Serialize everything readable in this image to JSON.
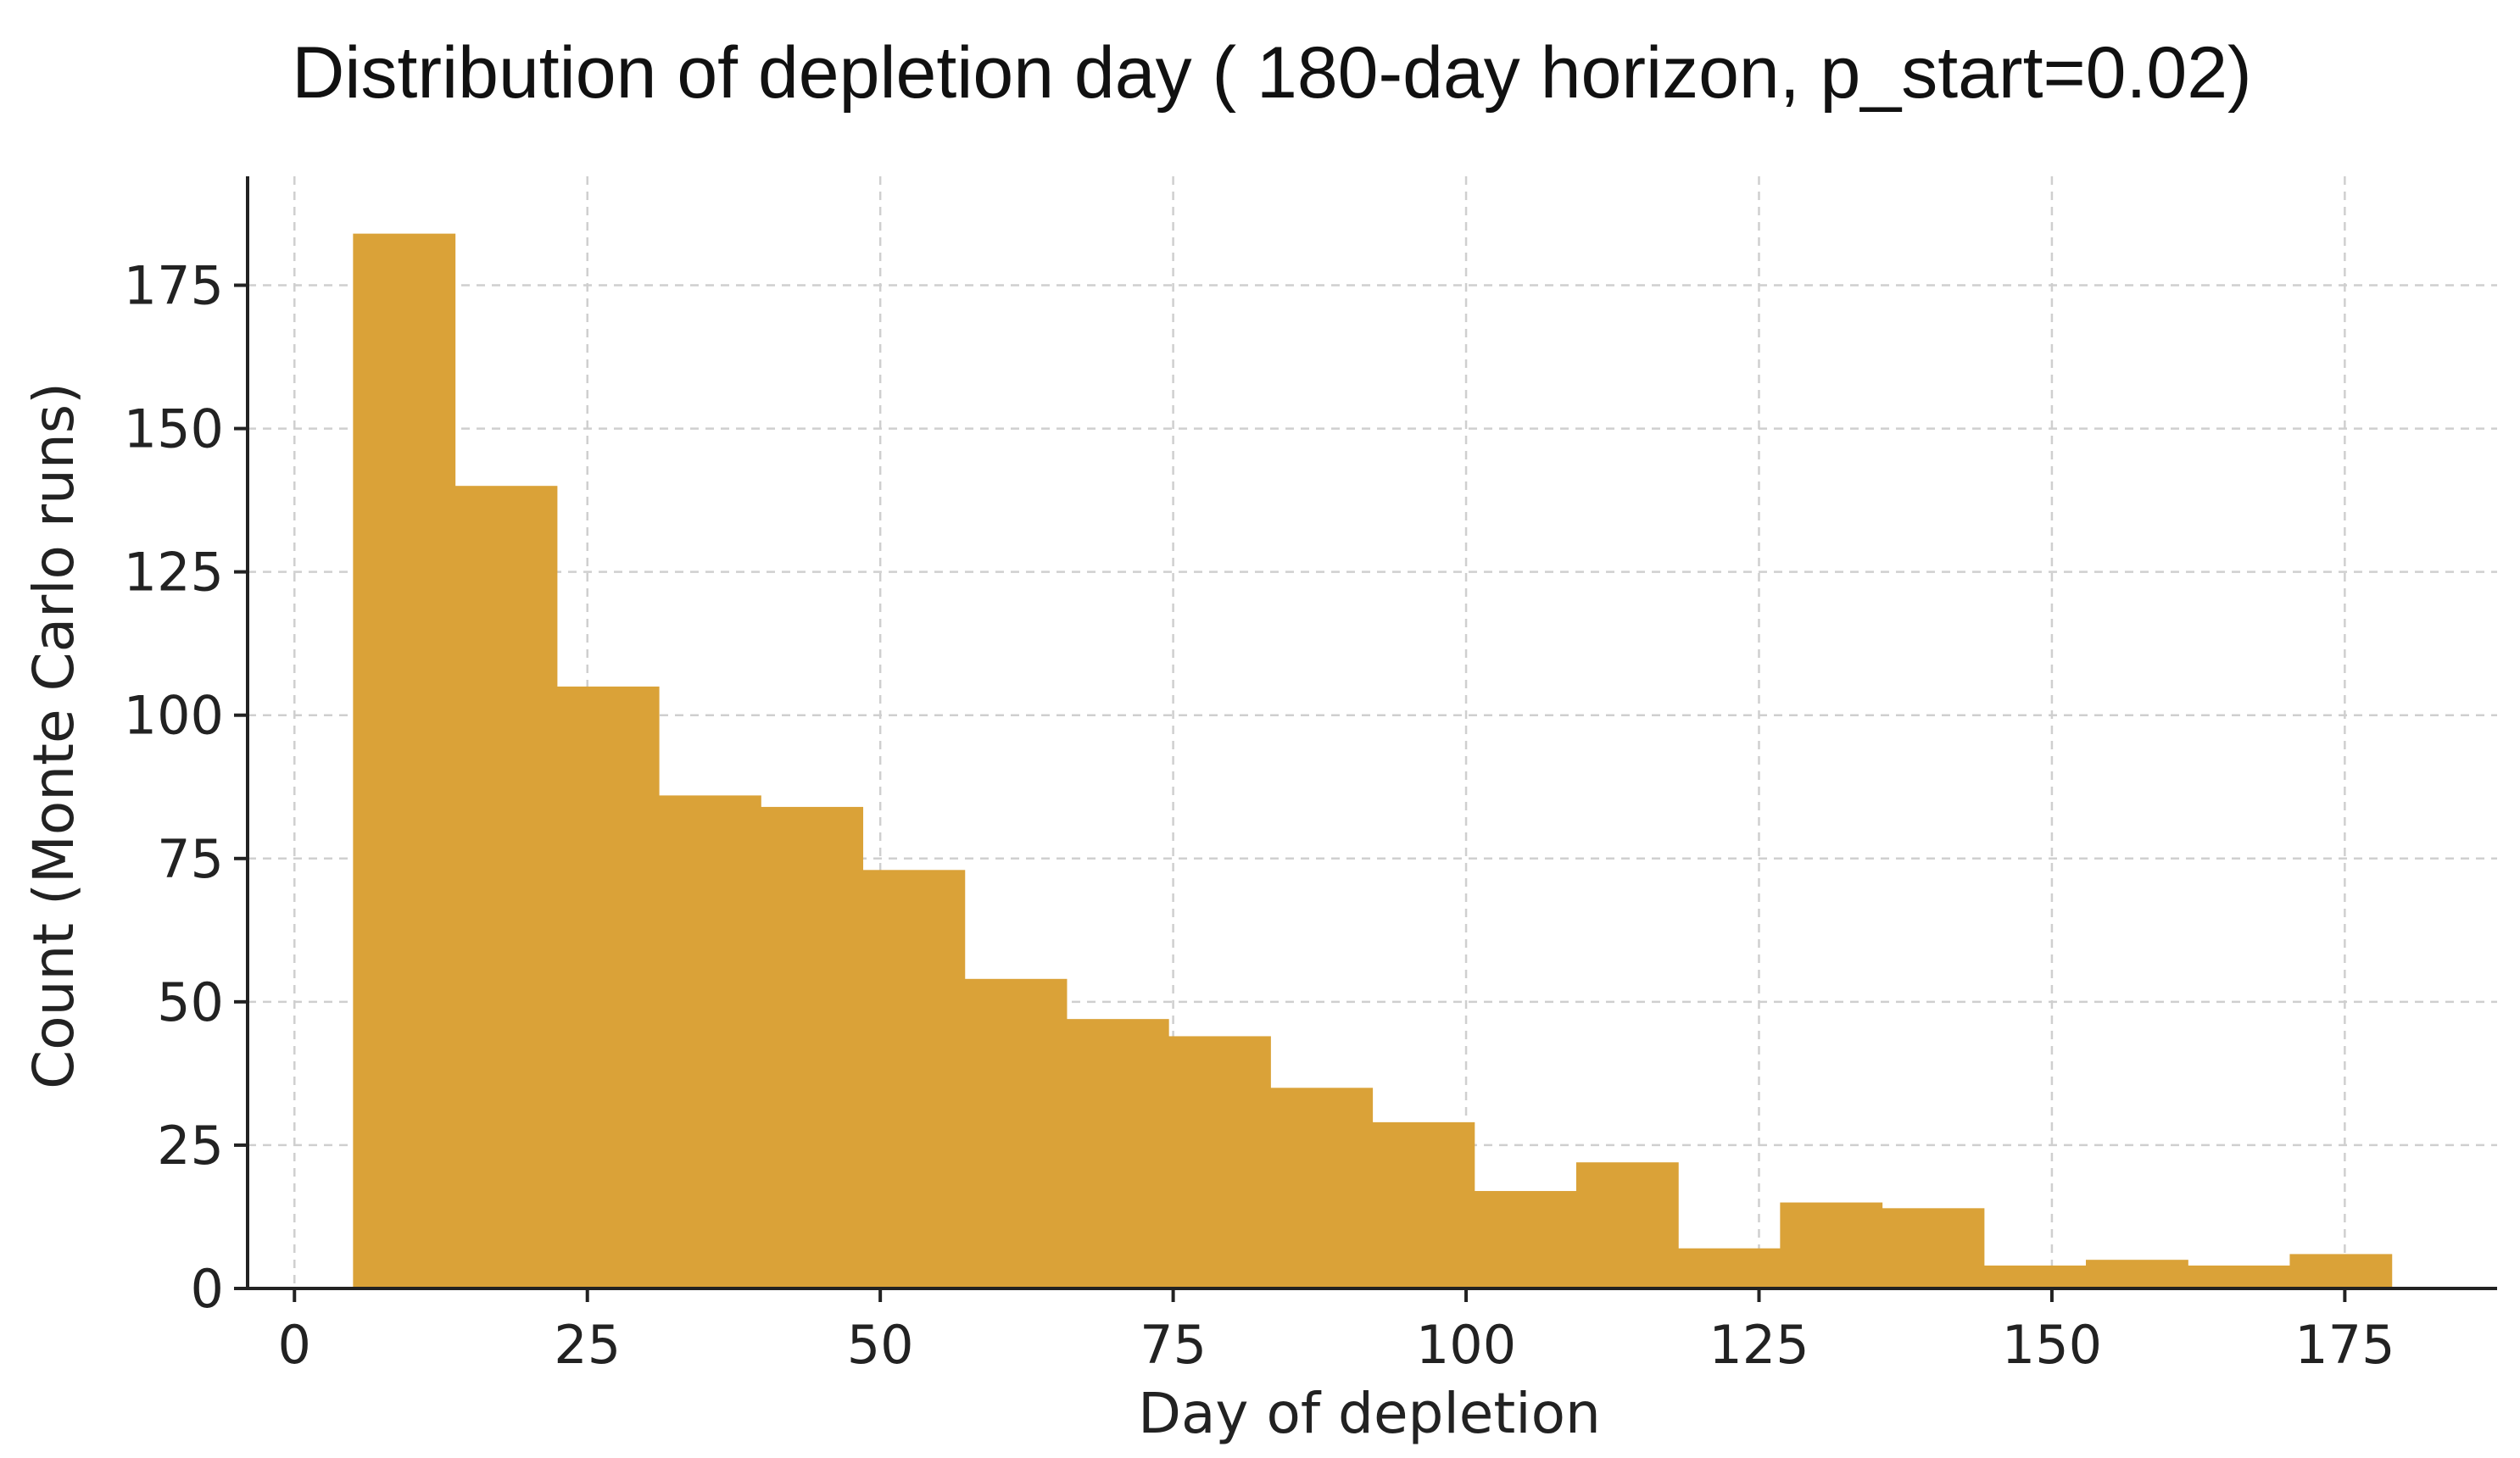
{
  "chart_data": {
    "type": "bar",
    "title": "Distribution of depletion day ( 180-day horizon, p_start=0.02)",
    "xlabel": "Day of depletion",
    "ylabel": "Count (Monte Carlo runs)",
    "xlim": [
      -4,
      188
    ],
    "ylim": [
      0,
      194
    ],
    "grid": true,
    "legend": "none",
    "bar_color": "#DAA238",
    "x_ticks": [
      0,
      25,
      50,
      75,
      100,
      125,
      150,
      175
    ],
    "y_ticks": [
      0,
      25,
      50,
      75,
      100,
      125,
      150,
      175
    ],
    "bin_edges": [
      5.0,
      13.7,
      22.4,
      31.1,
      39.8,
      48.5,
      57.2,
      65.9,
      74.6,
      83.3,
      92.0,
      100.7,
      109.4,
      118.1,
      126.8,
      135.5,
      144.2,
      152.9,
      161.6,
      170.3,
      179.0
    ],
    "values": [
      184,
      140,
      105,
      86,
      84,
      73,
      54,
      47,
      44,
      35,
      29,
      17,
      22,
      7,
      15,
      14,
      4,
      5,
      4,
      6
    ]
  }
}
